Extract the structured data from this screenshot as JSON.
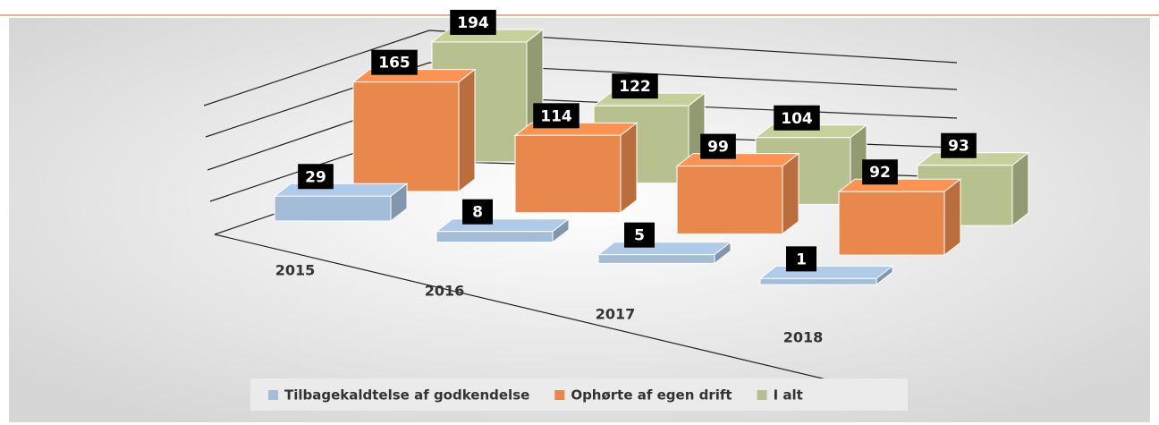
{
  "chart_data": {
    "type": "bar3d",
    "categories": [
      "2015",
      "2016",
      "2017",
      "2018"
    ],
    "series": [
      {
        "name": "Tilbagekaldtelse af godkendelse",
        "color": "#a3bcd8",
        "values": [
          29,
          8,
          5,
          1
        ]
      },
      {
        "name": "Ophørte af egen drift",
        "color": "#e9884c",
        "values": [
          165,
          114,
          99,
          92
        ]
      },
      {
        "name": "I alt",
        "color": "#b7c18f",
        "values": [
          194,
          122,
          104,
          93
        ]
      }
    ],
    "ylim": [
      0,
      200
    ]
  }
}
